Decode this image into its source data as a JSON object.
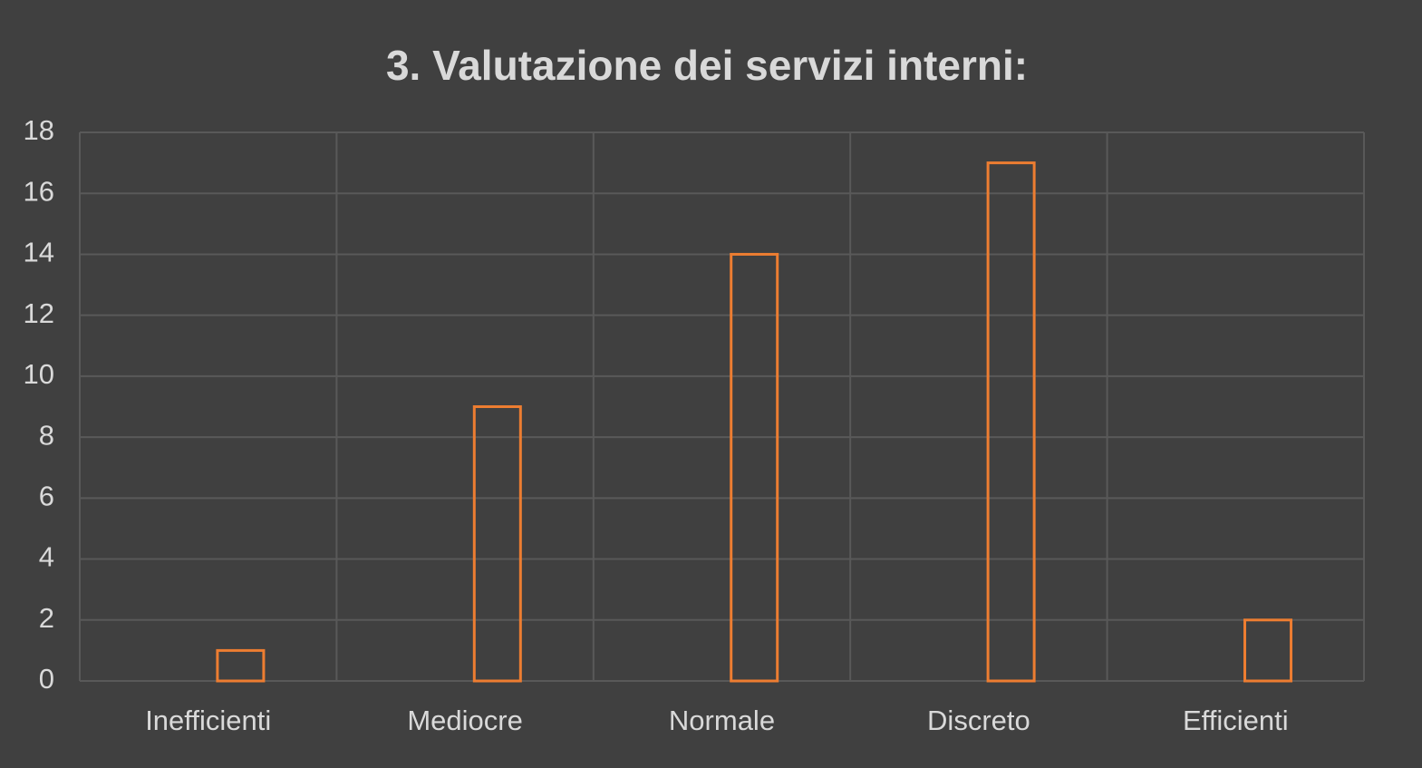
{
  "chart_data": {
    "type": "bar",
    "title": "3. Valutazione dei servizi interni:",
    "categories": [
      "Inefficienti",
      "Mediocre",
      "Normale",
      "Discreto",
      "Efficienti"
    ],
    "values": [
      1,
      9,
      14,
      17,
      2
    ],
    "color": "#ed7d31",
    "ylim": [
      0,
      18
    ],
    "yticks": [
      0,
      2,
      4,
      6,
      8,
      10,
      12,
      14,
      16,
      18
    ],
    "grid": true
  }
}
